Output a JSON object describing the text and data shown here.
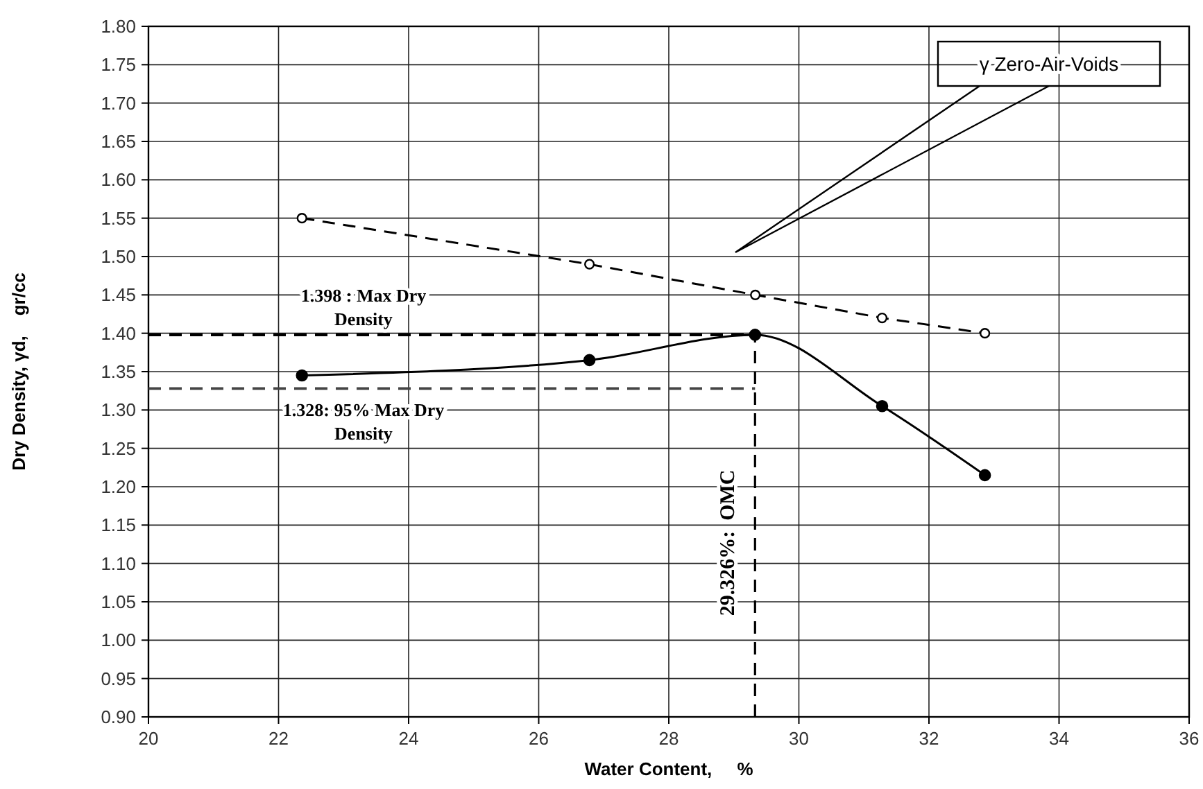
{
  "chart_data": {
    "type": "line",
    "xlabel": "Water Content,     %",
    "ylabel": "Dry Density, γd,    gr/cc",
    "xlim": [
      20,
      36
    ],
    "xticks": [
      20,
      22,
      24,
      26,
      28,
      30,
      32,
      34,
      36
    ],
    "ylim": [
      0.9,
      1.8
    ],
    "yticks": [
      {
        "value": 0.9,
        "label": "0.90"
      },
      {
        "value": 0.95,
        "label": "0.95"
      },
      {
        "value": 1.0,
        "label": "1.00"
      },
      {
        "value": 1.05,
        "label": "1.05"
      },
      {
        "value": 1.1,
        "label": "1.10"
      },
      {
        "value": 1.15,
        "label": "1.15"
      },
      {
        "value": 1.2,
        "label": "1.20"
      },
      {
        "value": 1.25,
        "label": "1.25"
      },
      {
        "value": 1.3,
        "label": "1.30"
      },
      {
        "value": 1.35,
        "label": "1.35"
      },
      {
        "value": 1.4,
        "label": "1.40"
      },
      {
        "value": 1.45,
        "label": "1.45"
      },
      {
        "value": 1.5,
        "label": "1.50"
      },
      {
        "value": 1.55,
        "label": "1.55"
      },
      {
        "value": 1.6,
        "label": "1.60"
      },
      {
        "value": 1.65,
        "label": "1.65"
      },
      {
        "value": 1.7,
        "label": "1.70"
      },
      {
        "value": 1.75,
        "label": "1.75"
      },
      {
        "value": 1.8,
        "label": "1.80"
      }
    ],
    "grid": true,
    "marker": "circle",
    "series": [
      {
        "color": "#000000",
        "line_style": "solid",
        "x": [
          22.36,
          26.78,
          29.326,
          31.28,
          32.86
        ],
        "values": [
          1.345,
          1.365,
          1.398,
          1.305,
          1.215
        ]
      },
      {
        "color": "#000000",
        "line_style": "dashed",
        "x": [
          22.36,
          26.78,
          29.33,
          31.28,
          32.86
        ],
        "values": [
          1.55,
          1.49,
          1.45,
          1.42,
          1.4
        ]
      }
    ],
    "annotations": [
      "γ Zero-Air-Voids"
    ],
    "ref_lines": [
      {
        "axis": "y",
        "value": 1.398,
        "label": "1.398 : Max Dry Density",
        "color": "#000000",
        "line_style": "dashed"
      },
      {
        "axis": "y",
        "value": 1.328,
        "label": "1.328: 95% Max Dry Density",
        "color": "#444444",
        "line_style": "dashed"
      },
      {
        "axis": "x",
        "value": 29.326,
        "label": "29.326%:  OMC",
        "color": "#000000",
        "line_style": "dashed"
      }
    ]
  }
}
